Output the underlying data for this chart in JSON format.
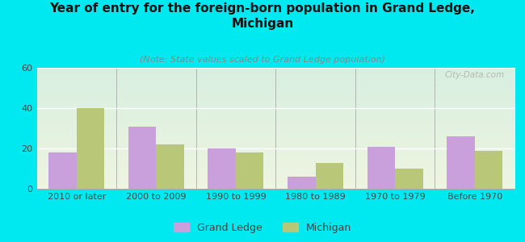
{
  "title": "Year of entry for the foreign-born population in Grand Ledge,\nMichigan",
  "subtitle": "(Note: State values scaled to Grand Ledge population)",
  "categories": [
    "2010 or later",
    "2000 to 2009",
    "1990 to 1999",
    "1980 to 1989",
    "1970 to 1979",
    "Before 1970"
  ],
  "grand_ledge_values": [
    18,
    31,
    20,
    6,
    21,
    26
  ],
  "michigan_values": [
    40,
    22,
    18,
    13,
    10,
    19
  ],
  "grand_ledge_color": "#c9a0dc",
  "michigan_color": "#b8c878",
  "background_color": "#00e8f0",
  "plot_bg_top": "#d8efe0",
  "plot_bg_bottom": "#eef5e0",
  "ylim": [
    0,
    60
  ],
  "yticks": [
    0,
    20,
    40,
    60
  ],
  "bar_width": 0.35,
  "title_fontsize": 11,
  "subtitle_fontsize": 8,
  "axis_fontsize": 8,
  "legend_fontsize": 9,
  "watermark": "City-Data.com"
}
